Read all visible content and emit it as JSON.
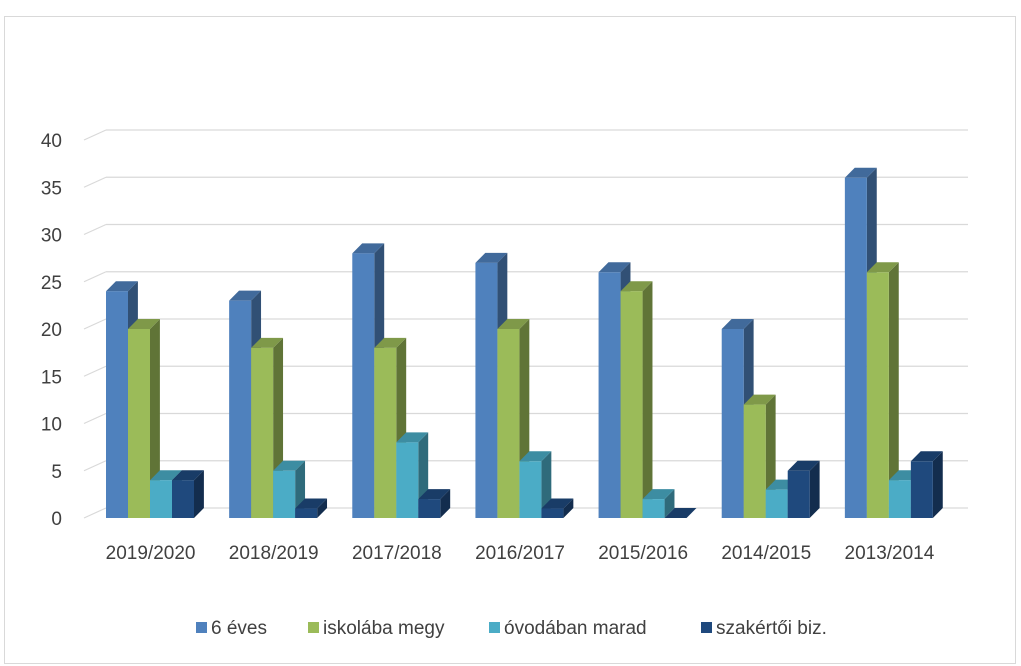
{
  "chart_data": {
    "type": "bar",
    "style": "3d-clustered-column",
    "categories": [
      "2019/2020",
      "2018/2019",
      "2017/2018",
      "2016/2017",
      "2015/2016",
      "2014/2015",
      "2013/2014"
    ],
    "series": [
      {
        "name": "6 éves",
        "values": [
          24,
          23,
          28,
          27,
          26,
          20,
          36
        ],
        "color": "#4f81bd"
      },
      {
        "name": "iskolába megy",
        "values": [
          20,
          18,
          18,
          20,
          24,
          12,
          26
        ],
        "color": "#9bbb59"
      },
      {
        "name": "óvodában marad",
        "values": [
          4,
          5,
          8,
          6,
          2,
          3,
          4
        ],
        "color": "#4bacc6"
      },
      {
        "name": "szakértői biz.",
        "values": [
          4,
          1,
          2,
          1,
          0,
          5,
          6
        ],
        "color": "#1f497d"
      }
    ],
    "ylim": [
      0,
      40
    ],
    "yticks": [
      0,
      5,
      10,
      15,
      20,
      25,
      30,
      35,
      40
    ],
    "grid": true,
    "legend_position": "bottom",
    "title": "",
    "xlabel": "",
    "ylabel": ""
  }
}
